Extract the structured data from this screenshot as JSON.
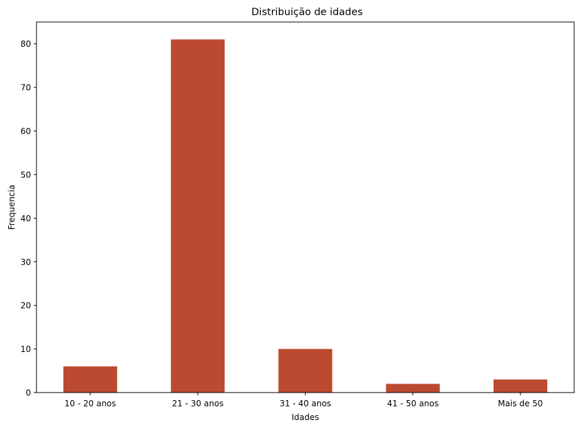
{
  "chart_data": {
    "type": "bar",
    "title": "Distribuição de idades",
    "xlabel": "Idades",
    "ylabel": "Frequencia",
    "categories": [
      "10 - 20 anos",
      "21 - 30 anos",
      "31 - 40 anos",
      "41 - 50 anos",
      "Mais de 50"
    ],
    "values": [
      6,
      81,
      10,
      2,
      3
    ],
    "ylim": [
      0,
      85
    ],
    "yticks": [
      0,
      10,
      20,
      30,
      40,
      50,
      60,
      70,
      80
    ],
    "bar_color": "#bb4a30",
    "grid": false,
    "legend": "none"
  }
}
